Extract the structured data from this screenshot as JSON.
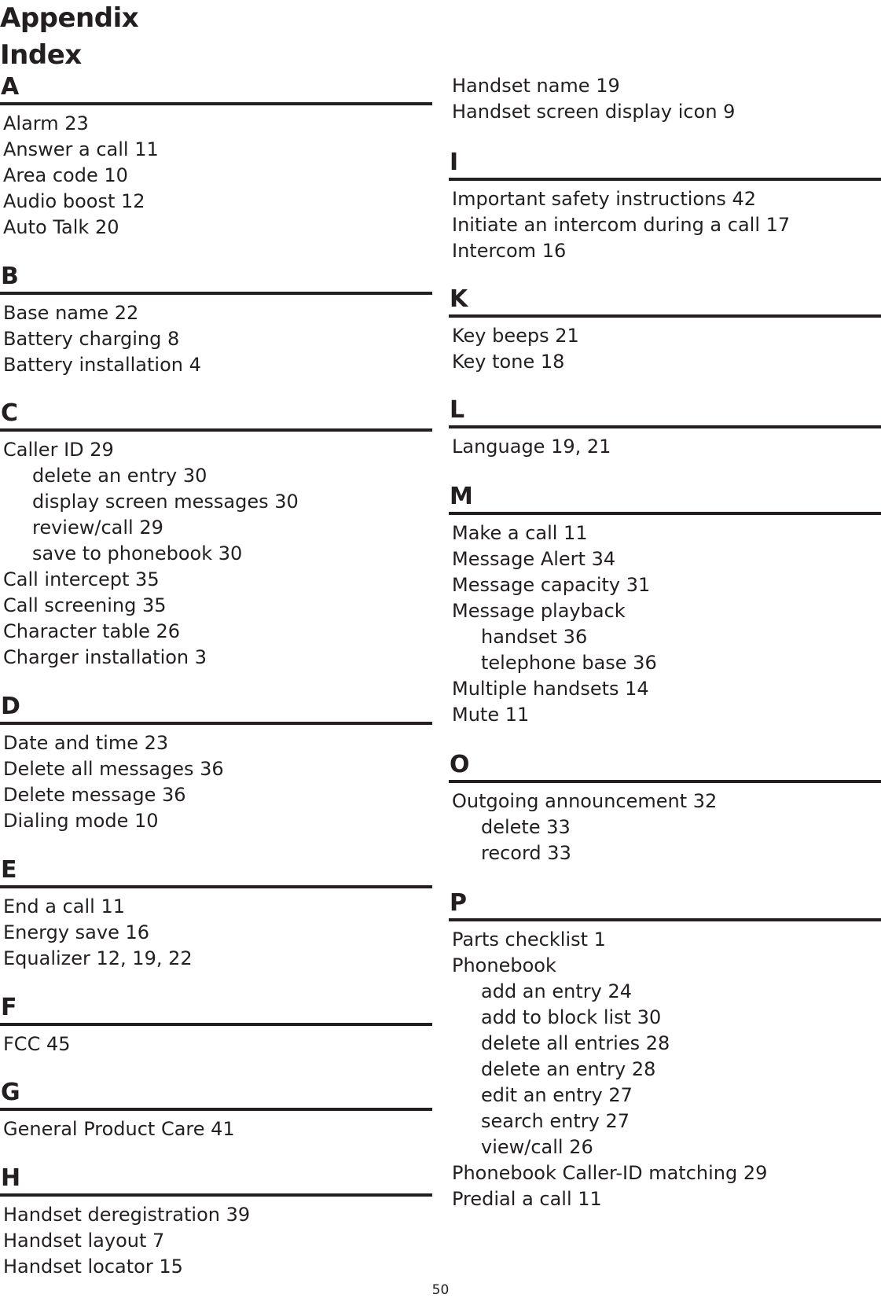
{
  "header": {
    "title": "Appendix",
    "subtitle": "Index"
  },
  "left_column": [
    {
      "letter": "A",
      "entries": [
        {
          "text": "Alarm  23",
          "level": 0
        },
        {
          "text": "Answer a call  11",
          "level": 0
        },
        {
          "text": "Area code  10",
          "level": 0
        },
        {
          "text": "Audio boost  12",
          "level": 0
        },
        {
          "text": "Auto Talk  20",
          "level": 0
        }
      ]
    },
    {
      "letter": "B",
      "entries": [
        {
          "text": "Base name  22",
          "level": 0
        },
        {
          "text": "Battery charging  8",
          "level": 0
        },
        {
          "text": "Battery installation  4",
          "level": 0
        }
      ]
    },
    {
      "letter": "C",
      "entries": [
        {
          "text": "Caller ID  29",
          "level": 0
        },
        {
          "text": "delete an entry  30",
          "level": 1
        },
        {
          "text": "display screen messages  30",
          "level": 1
        },
        {
          "text": "review/call  29",
          "level": 1
        },
        {
          "text": "save to phonebook  30",
          "level": 1
        },
        {
          "text": "Call intercept  35",
          "level": 0
        },
        {
          "text": "Call screening  35",
          "level": 0
        },
        {
          "text": "Character table  26",
          "level": 0
        },
        {
          "text": "Charger installation  3",
          "level": 0
        }
      ]
    },
    {
      "letter": "D",
      "entries": [
        {
          "text": "Date and time  23",
          "level": 0
        },
        {
          "text": "Delete all messages  36",
          "level": 0
        },
        {
          "text": "Delete message  36",
          "level": 0
        },
        {
          "text": "Dialing mode  10",
          "level": 0
        }
      ]
    },
    {
      "letter": "E",
      "entries": [
        {
          "text": "End a call  11",
          "level": 0
        },
        {
          "text": "Energy save  16",
          "level": 0
        },
        {
          "text": "Equalizer  12, 19, 22",
          "level": 0
        }
      ]
    },
    {
      "letter": "F",
      "entries": [
        {
          "text": "FCC  45",
          "level": 0
        }
      ]
    },
    {
      "letter": "G",
      "entries": [
        {
          "text": "General Product Care  41",
          "level": 0
        }
      ]
    },
    {
      "letter": "H",
      "entries": [
        {
          "text": "Handset deregistration  39",
          "level": 0
        },
        {
          "text": "Handset layout  7",
          "level": 0
        },
        {
          "text": "Handset locator  15",
          "level": 0
        }
      ]
    }
  ],
  "right_column_continued": [
    {
      "text": "Handset name  19",
      "level": 0
    },
    {
      "text": "Handset screen display icon  9",
      "level": 0
    }
  ],
  "right_column": [
    {
      "letter": "I",
      "entries": [
        {
          "text": "Important safety instructions  42",
          "level": 0
        },
        {
          "text": "Initiate an intercom during a call  17",
          "level": 0
        },
        {
          "text": "Intercom  16",
          "level": 0
        }
      ]
    },
    {
      "letter": "K",
      "entries": [
        {
          "text": "Key beeps  21",
          "level": 0
        },
        {
          "text": "Key tone  18",
          "level": 0
        }
      ]
    },
    {
      "letter": "L",
      "entries": [
        {
          "text": "Language  19, 21",
          "level": 0
        }
      ]
    },
    {
      "letter": "M",
      "entries": [
        {
          "text": "Make a call  11",
          "level": 0
        },
        {
          "text": "Message Alert  34",
          "level": 0
        },
        {
          "text": "Message capacity  31",
          "level": 0
        },
        {
          "text": "Message playback",
          "level": 0
        },
        {
          "text": "handset  36",
          "level": 1
        },
        {
          "text": "telephone base  36",
          "level": 1
        },
        {
          "text": "Multiple handsets  14",
          "level": 0
        },
        {
          "text": "Mute  11",
          "level": 0
        }
      ]
    },
    {
      "letter": "O",
      "entries": [
        {
          "text": "Outgoing announcement  32",
          "level": 0
        },
        {
          "text": "delete  33",
          "level": 1
        },
        {
          "text": "record  33",
          "level": 1
        }
      ]
    },
    {
      "letter": "P",
      "entries": [
        {
          "text": "Parts checklist  1",
          "level": 0
        },
        {
          "text": "Phonebook",
          "level": 0
        },
        {
          "text": "add an entry  24",
          "level": 1
        },
        {
          "text": "add to block list  30",
          "level": 1
        },
        {
          "text": "delete all entries  28",
          "level": 1
        },
        {
          "text": "delete an entry  28",
          "level": 1
        },
        {
          "text": "edit an entry  27",
          "level": 1
        },
        {
          "text": "search entry  27",
          "level": 1
        },
        {
          "text": "view/call  26",
          "level": 1
        },
        {
          "text": "Phonebook Caller-ID matching  29",
          "level": 0
        },
        {
          "text": "Predial a call  11",
          "level": 0
        }
      ]
    }
  ],
  "footer": {
    "page_number": "50"
  }
}
